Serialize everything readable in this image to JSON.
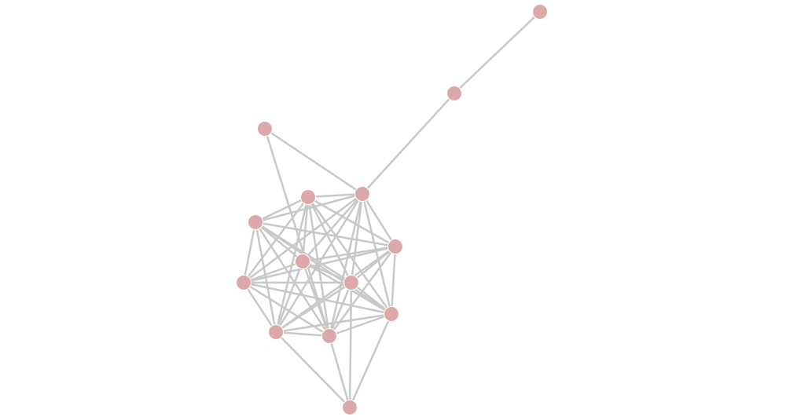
{
  "diagram": {
    "type": "network-graph",
    "colors": {
      "node": "#dca9aa",
      "edge": "#c8c8c8",
      "background": "#ffffff"
    },
    "nodes": [
      "n1",
      "n2",
      "n3",
      "n4",
      "n5",
      "n6",
      "n7",
      "n8",
      "n9",
      "n10",
      "n11",
      "n12",
      "n13",
      "n14"
    ],
    "edges": [
      [
        "n1",
        "n2"
      ],
      [
        "n2",
        "n4"
      ],
      [
        "n3",
        "n4"
      ],
      [
        "n3",
        "n13"
      ],
      [
        "n4",
        "n5"
      ],
      [
        "n4",
        "n6"
      ],
      [
        "n4",
        "n7"
      ],
      [
        "n4",
        "n8"
      ],
      [
        "n4",
        "n9"
      ],
      [
        "n4",
        "n10"
      ],
      [
        "n4",
        "n11"
      ],
      [
        "n4",
        "n12"
      ],
      [
        "n4",
        "n13"
      ],
      [
        "n5",
        "n6"
      ],
      [
        "n5",
        "n7"
      ],
      [
        "n5",
        "n8"
      ],
      [
        "n5",
        "n9"
      ],
      [
        "n5",
        "n10"
      ],
      [
        "n5",
        "n11"
      ],
      [
        "n5",
        "n12"
      ],
      [
        "n5",
        "n13"
      ],
      [
        "n6",
        "n7"
      ],
      [
        "n6",
        "n8"
      ],
      [
        "n6",
        "n9"
      ],
      [
        "n6",
        "n10"
      ],
      [
        "n6",
        "n11"
      ],
      [
        "n6",
        "n12"
      ],
      [
        "n6",
        "n13"
      ],
      [
        "n7",
        "n8"
      ],
      [
        "n7",
        "n9"
      ],
      [
        "n7",
        "n10"
      ],
      [
        "n7",
        "n11"
      ],
      [
        "n7",
        "n12"
      ],
      [
        "n7",
        "n13"
      ],
      [
        "n8",
        "n9"
      ],
      [
        "n8",
        "n10"
      ],
      [
        "n8",
        "n11"
      ],
      [
        "n8",
        "n12"
      ],
      [
        "n8",
        "n13"
      ],
      [
        "n9",
        "n10"
      ],
      [
        "n9",
        "n11"
      ],
      [
        "n9",
        "n12"
      ],
      [
        "n9",
        "n13"
      ],
      [
        "n10",
        "n11"
      ],
      [
        "n10",
        "n12"
      ],
      [
        "n10",
        "n13"
      ],
      [
        "n10",
        "n14"
      ],
      [
        "n11",
        "n12"
      ],
      [
        "n11",
        "n13"
      ],
      [
        "n11",
        "n14"
      ],
      [
        "n12",
        "n13"
      ],
      [
        "n12",
        "n14"
      ],
      [
        "n13",
        "n14"
      ]
    ]
  }
}
